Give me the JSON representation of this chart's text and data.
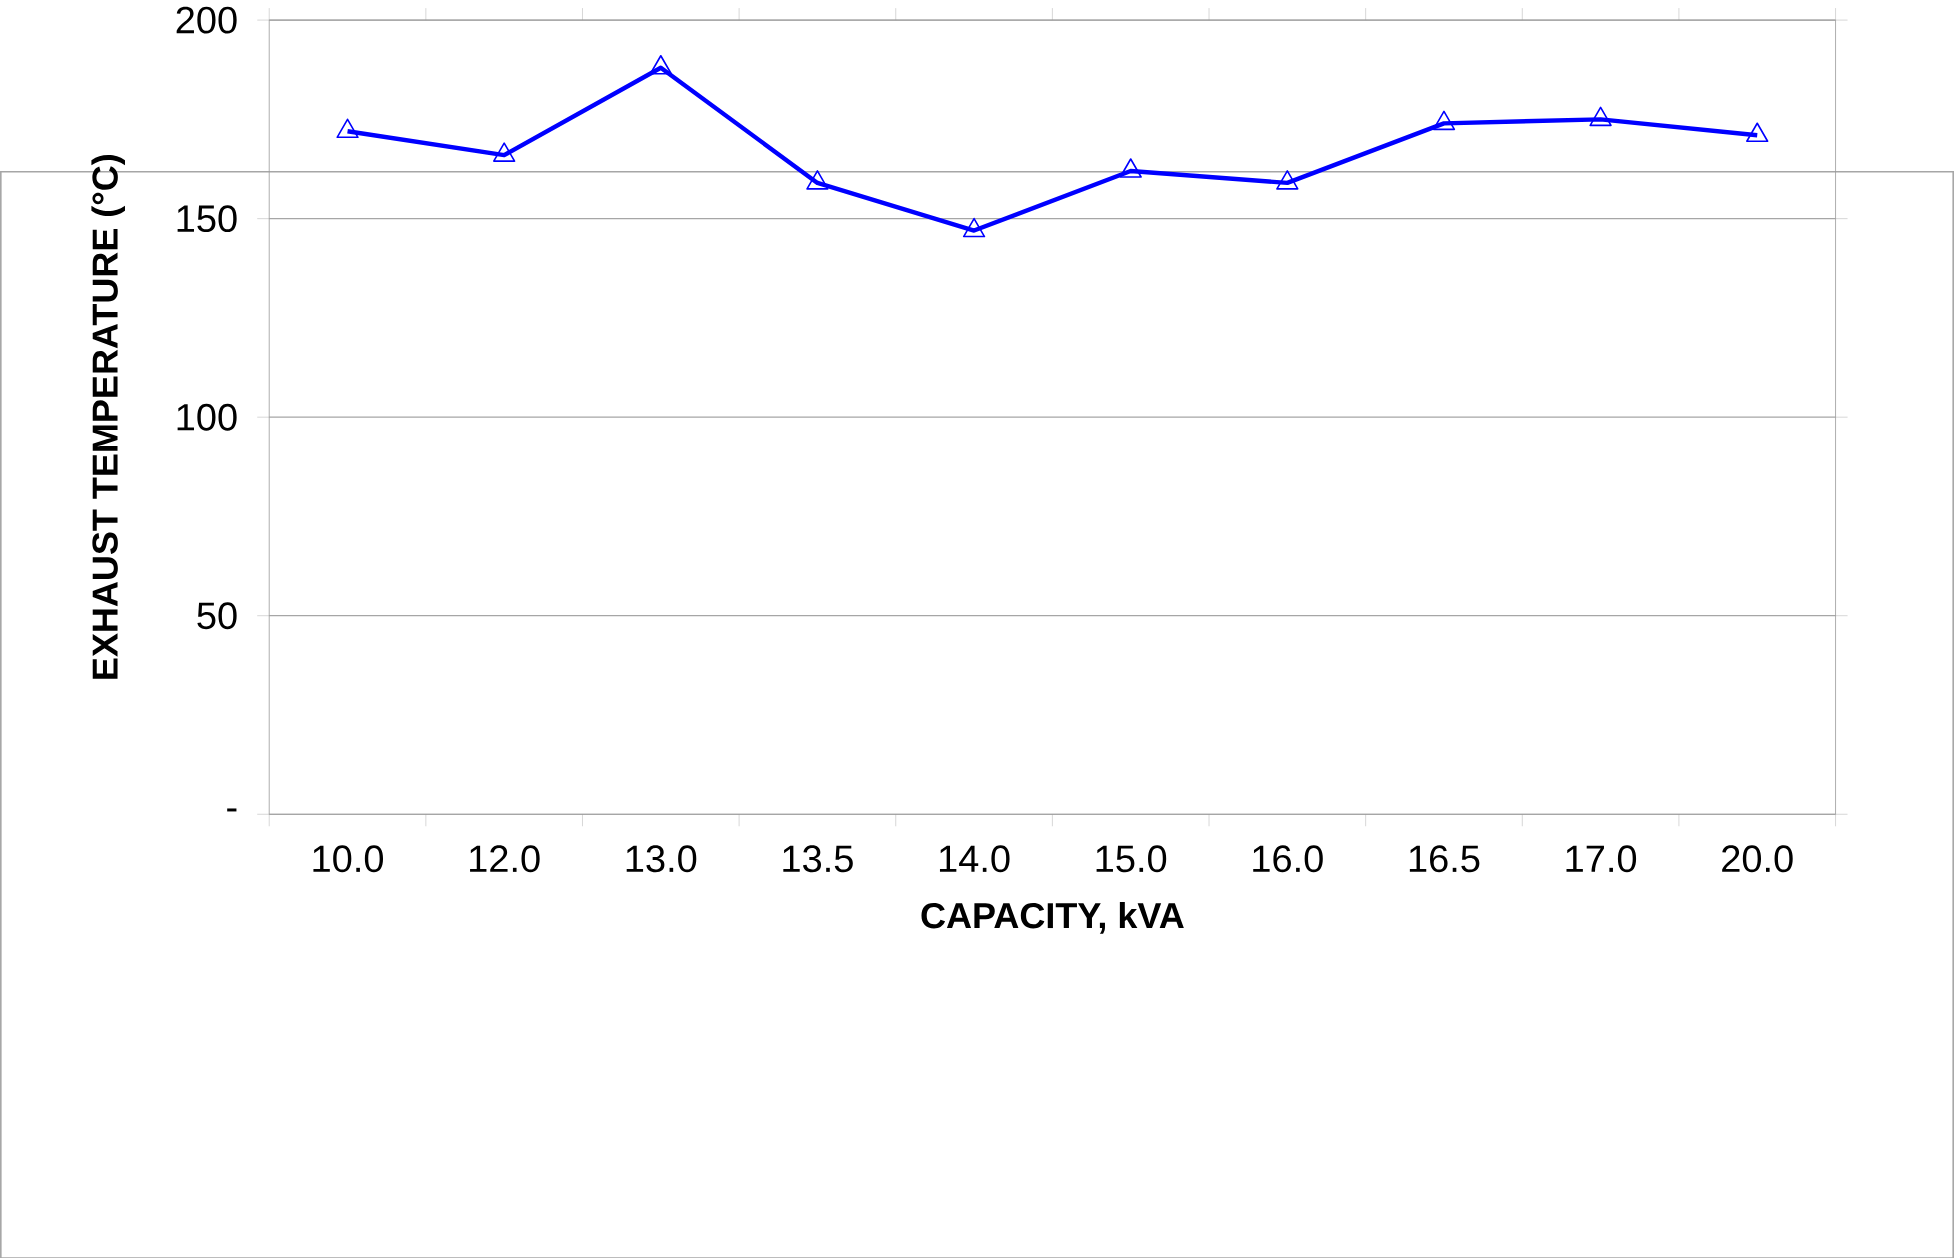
{
  "chart_data": {
    "type": "line",
    "xlabel": "CAPACITY, kVA",
    "ylabel": "EXHAUST   TEMPERATURE  (°C)",
    "categories": [
      "10.0",
      "12.0",
      "13.0",
      "13.5",
      "14.0",
      "15.0",
      "16.0",
      "16.5",
      "17.0",
      "20.0"
    ],
    "series": [
      {
        "color": "#0000ff",
        "values": [
          172,
          166,
          188,
          159,
          147,
          162,
          159,
          174,
          175,
          171
        ]
      }
    ],
    "ylim": [
      0,
      200
    ],
    "yticks": [
      {
        "value": 0,
        "label": "-"
      },
      50,
      100,
      150,
      200
    ],
    "grid": "y",
    "marker": "triangle",
    "line_style": "solid"
  }
}
